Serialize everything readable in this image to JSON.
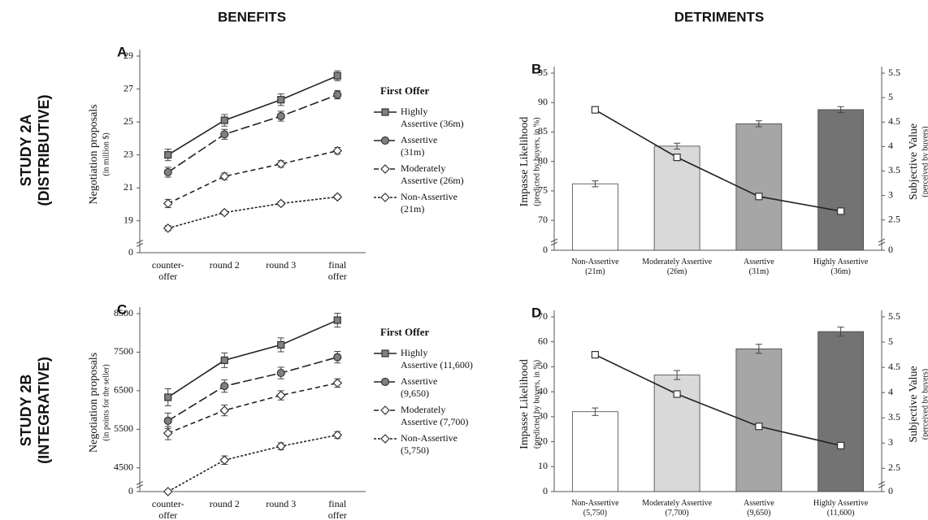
{
  "column_titles": [
    "BENEFITS",
    "DETRIMENTS"
  ],
  "row_titles": [
    "STUDY 2A\n(DISTRIBUTIVE)",
    "STUDY 2B\n(INTEGRATIVE)"
  ],
  "chart_data": [
    {
      "type": "line",
      "label": "A",
      "ylabel": "Negotiation proposals",
      "ylabel_sub": "(in million $)",
      "categories": [
        "counter-\noffer",
        "round 2",
        "round 3",
        "final\noffer"
      ],
      "ylim": [
        18.1,
        29
      ],
      "yticks": [
        0,
        19,
        21,
        23,
        25,
        27,
        29
      ],
      "y_axis_break": true,
      "legend_title": "First Offer",
      "series": [
        {
          "name": "Highly\nAssertive (36m)",
          "color": "#808080",
          "marker": "square",
          "dash": "solid",
          "values": [
            23.0,
            25.1,
            26.35,
            27.8
          ],
          "errors": [
            0.35,
            0.35,
            0.35,
            0.3
          ]
        },
        {
          "name": "Assertive\n(31m)",
          "color": "#808080",
          "marker": "circle",
          "dash": "long-dash",
          "values": [
            21.95,
            24.25,
            25.35,
            26.65
          ],
          "errors": [
            0.3,
            0.3,
            0.3,
            0.25
          ]
        },
        {
          "name": "Moderately\nAssertive (26m)",
          "color": "#ffffff",
          "marker": "diamond",
          "dash": "dash",
          "values": [
            20.05,
            21.7,
            22.45,
            23.25
          ],
          "errors": [
            0.25,
            0.2,
            0.2,
            0.2
          ]
        },
        {
          "name": "Non-Assertive\n(21m)",
          "color": "#ffffff",
          "marker": "diamond",
          "dash": "short-dash",
          "values": [
            18.55,
            19.5,
            20.05,
            20.45
          ],
          "errors": [
            0.15,
            0.12,
            0.12,
            0.12
          ]
        }
      ]
    },
    {
      "type": "bar_line",
      "label": "B",
      "ylabel": "Impasse Likelihood",
      "ylabel_sub": "(predicted by buyers, in %)",
      "y2label": "Subjective Value",
      "y2label_sub": "(perceived by buyers)",
      "categories": [
        "Non-Assertive\n(21m)",
        "Moderately Assertive\n(26m)",
        "Assertive\n(31m)",
        "Highly Assertive\n(36m)"
      ],
      "ylim": [
        67.4,
        95
      ],
      "yticks": [
        0,
        70,
        75,
        80,
        85,
        90,
        95
      ],
      "y_axis_break": true,
      "y2lim": [
        2.18,
        5.5
      ],
      "y2ticks": [
        0,
        2.5,
        3,
        3.5,
        4,
        4.5,
        5,
        5.5
      ],
      "y2_axis_break": true,
      "series": [
        {
          "type": "bar",
          "colors": [
            "#ffffff",
            "#d9d9d9",
            "#a6a6a6",
            "#737373"
          ],
          "values": [
            76.2,
            82.6,
            86.4,
            88.8
          ],
          "errors": [
            0.5,
            0.5,
            0.5,
            0.5
          ]
        },
        {
          "type": "line",
          "axis": "y2",
          "color": "#ffffff",
          "marker": "square",
          "dash": "solid",
          "values": [
            4.75,
            3.78,
            2.98,
            2.68
          ],
          "errors": [
            0.06,
            0.06,
            0.06,
            0.04
          ]
        }
      ]
    },
    {
      "type": "line",
      "label": "C",
      "ylabel": "Negotiation proposals",
      "ylabel_sub": "(in points for the seller)",
      "categories": [
        "counter-\noffer",
        "round 2",
        "round 3",
        "final\noffer"
      ],
      "ylim": [
        4200,
        8500
      ],
      "yticks": [
        0,
        4500,
        5500,
        6500,
        7500,
        8500
      ],
      "y_axis_break": true,
      "legend_title": "First Offer",
      "series": [
        {
          "name": "Highly\nAssertive (11,600)",
          "color": "#808080",
          "marker": "square",
          "dash": "solid",
          "values": [
            6330,
            7290,
            7690,
            8330
          ],
          "errors": [
            220,
            190,
            180,
            180
          ]
        },
        {
          "name": "Assertive\n(9,650)",
          "color": "#808080",
          "marker": "circle",
          "dash": "long-dash",
          "values": [
            5720,
            6620,
            6960,
            7370
          ],
          "errors": [
            200,
            160,
            150,
            150
          ]
        },
        {
          "name": "Moderately\nAssertive (7,700)",
          "color": "#ffffff",
          "marker": "diamond",
          "dash": "dash",
          "values": [
            5400,
            5990,
            6380,
            6700
          ],
          "errors": [
            170,
            140,
            120,
            110
          ]
        },
        {
          "name": "Non-Assertive\n(5,750)",
          "color": "#ffffff",
          "marker": "diamond",
          "dash": "short-dash",
          "values": [
            4000,
            4700,
            5060,
            5350
          ],
          "errors": [
            160,
            110,
            90,
            90
          ]
        }
      ]
    },
    {
      "type": "bar_line",
      "label": "D",
      "ylabel": "Impasse Likelihood",
      "ylabel_sub": "(predicted by buyers, in %)",
      "y2label": "Subjective Value",
      "y2label_sub": "(perceived by buyers)",
      "categories": [
        "Non-Assertive\n(5,750)",
        "Moderately Assertive\n(7,700)",
        "Assertive\n(9,650)",
        "Highly Assertive\n(11,600)"
      ],
      "ylim": [
        0,
        70
      ],
      "yticks": [
        0,
        10,
        20,
        30,
        40,
        50,
        60,
        70
      ],
      "y_axis_break": false,
      "y2lim": [
        2.28,
        5.5
      ],
      "y2ticks": [
        0,
        2.5,
        3,
        3.5,
        4,
        4.5,
        5,
        5.5
      ],
      "y2_axis_break": true,
      "series": [
        {
          "type": "bar",
          "colors": [
            "#ffffff",
            "#d9d9d9",
            "#a6a6a6",
            "#737373"
          ],
          "values": [
            32,
            46.7,
            57.2,
            64.1
          ],
          "errors": [
            1.5,
            1.8,
            1.8,
            1.8
          ]
        },
        {
          "type": "line",
          "axis": "y2",
          "color": "#ffffff",
          "marker": "square",
          "dash": "solid",
          "values": [
            4.75,
            3.97,
            3.33,
            2.95
          ],
          "errors": [
            0.05,
            0.06,
            0.05,
            0.04
          ]
        }
      ]
    }
  ]
}
